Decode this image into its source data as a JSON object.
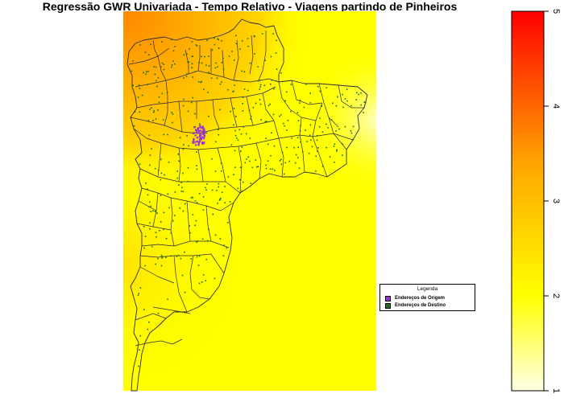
{
  "title": "Regressão GWR Univariada - Tempo Relativo - Viagens partindo de Pinheiros",
  "legend": {
    "title": "Legenda",
    "items": [
      {
        "label": "Endereços de Origem",
        "color": "#9b30d9"
      },
      {
        "label": "Endereços de Destino",
        "color": "#1a6b1a"
      }
    ]
  },
  "colorbar": {
    "min": 1,
    "max": 5,
    "ticks": [
      1,
      2,
      3,
      4,
      5
    ],
    "tick_labels": [
      "1",
      "2",
      "3",
      "4",
      "5"
    ],
    "colors": [
      "#ffffe6",
      "#ffff00",
      "#ffa500",
      "#ff0000"
    ]
  },
  "colors": {
    "origin": "#9b30d9",
    "destination": "#1a6b1a",
    "boundary": "#2b2b2b"
  }
}
